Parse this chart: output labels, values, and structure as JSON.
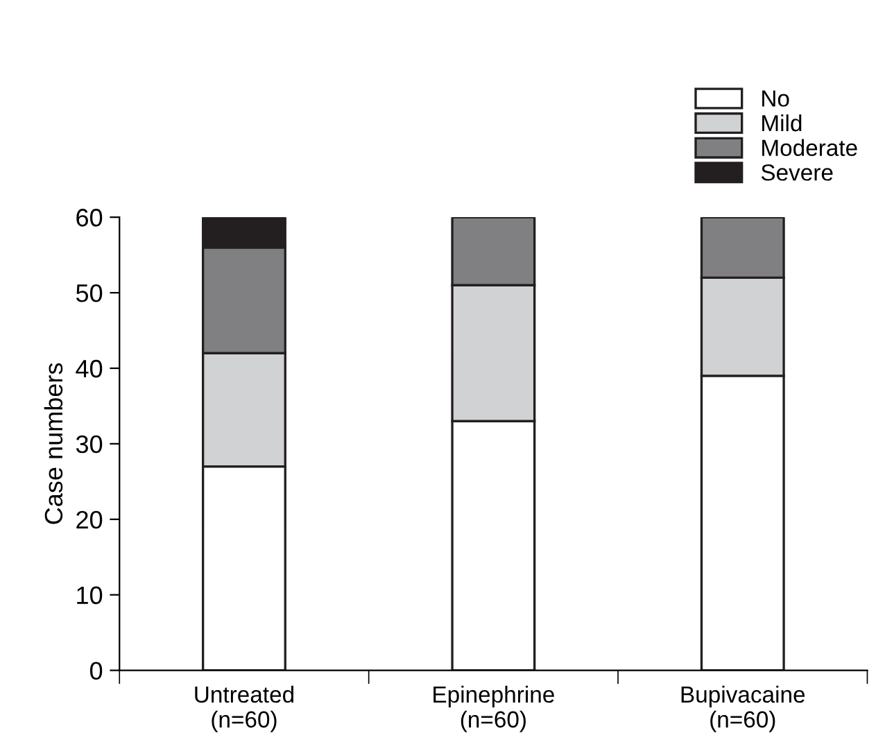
{
  "chart_data": {
    "type": "bar",
    "stacked": true,
    "ylabel": "Case numbers",
    "categories": [
      "Untreated\n(n=60)",
      "Epinephrine\n(n=60)",
      "Bupivacaine\n(n=60)"
    ],
    "series": [
      {
        "name": "No",
        "color": "#ffffff",
        "values": [
          27,
          33,
          39
        ]
      },
      {
        "name": "Mild",
        "color": "#d1d2d4",
        "values": [
          15,
          18,
          13
        ]
      },
      {
        "name": "Moderate",
        "color": "#808083",
        "values": [
          14,
          9,
          8
        ]
      },
      {
        "name": "Severe",
        "color": "#231f20",
        "values": [
          4,
          0,
          0
        ]
      }
    ],
    "ylim": [
      0,
      60
    ],
    "yticks": [
      0,
      10,
      20,
      30,
      40,
      50,
      60
    ],
    "grid": false,
    "legend": "top right"
  }
}
